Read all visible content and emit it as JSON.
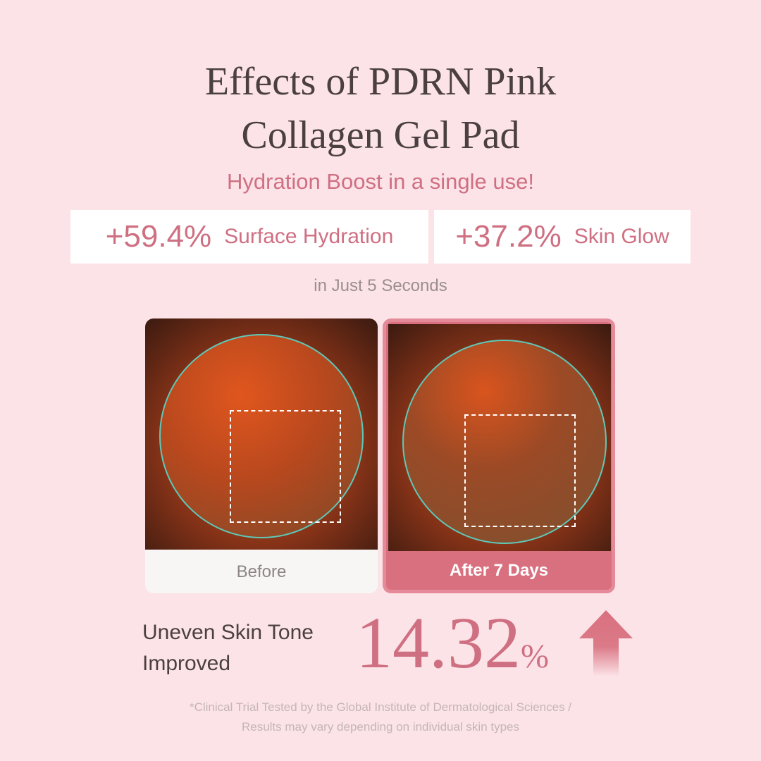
{
  "title_line1": "Effects of PDRN Pink",
  "title_line2": "Collagen Gel Pad",
  "subtitle": "Hydration Boost in a single use!",
  "stats": [
    {
      "value": "+59.4%",
      "label": "Surface Hydration"
    },
    {
      "value": "+37.2%",
      "label": "Skin Glow"
    }
  ],
  "stats_note": "in Just 5 Seconds",
  "comparison": {
    "before": "Before",
    "after": "After 7 Days"
  },
  "result": {
    "label_line1": "Uneven Skin Tone",
    "label_line2": "Improved",
    "value": "14.32",
    "unit": "%",
    "icon": "arrow-up-icon"
  },
  "footnote_line1": "*Clinical Trial Tested by the Global Institute of Dermatological Sciences /",
  "footnote_line2": "Results may vary depending on individual skin types",
  "colors": {
    "background": "#fce3e7",
    "accent": "#cf6f82",
    "text": "#4a3f41"
  }
}
